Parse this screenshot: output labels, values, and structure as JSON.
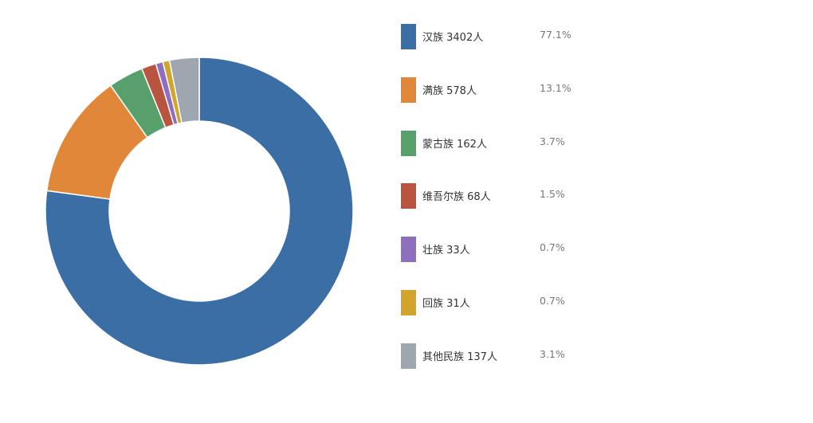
{
  "chart_data": {
    "type": "pie",
    "donut": true,
    "title": "",
    "unit": "人",
    "legend_position": "right",
    "categories": [
      "汉族",
      "满族",
      "蒙古族",
      "维吾尔族",
      "壮族",
      "回族",
      "其他民族"
    ],
    "values": [
      3402,
      578,
      162,
      68,
      33,
      31,
      137
    ],
    "labels": [
      "汉族 3402人",
      "满族 578人",
      "蒙古族 162人",
      "维吾尔族 68人",
      "壮族 33人",
      "回族 31人",
      "其他民族 137人"
    ],
    "percents": [
      "77.1%",
      "13.1%",
      "3.7%",
      "1.5%",
      "0.7%",
      "0.7%",
      "3.1%"
    ],
    "colors": [
      "#3b6ea5",
      "#e0873a",
      "#57a06c",
      "#b95440",
      "#8e6fbe",
      "#d1a52b",
      "#9ea7b0"
    ]
  }
}
